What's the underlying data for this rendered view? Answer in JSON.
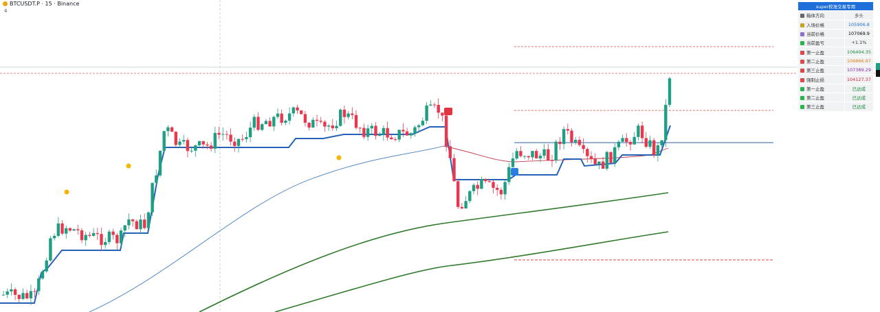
{
  "header": {
    "symbol": "BTCUSDT.P · 15 · Binance",
    "indicator_count": 4
  },
  "panel": {
    "title": "super校准交易专用",
    "rows": [
      [
        "箱体方向",
        "多头"
      ],
      [
        "入场价格",
        "105906.8"
      ],
      [
        "当前价格",
        "107069.9"
      ],
      [
        "当前盈亏",
        "+1.1%"
      ],
      [
        "第一止盈",
        "106404.35"
      ],
      [
        "第二止盈",
        "106866.87"
      ],
      [
        "第三止盈",
        "107389.29"
      ],
      [
        "强制止损",
        "104127.37"
      ],
      [
        "第一止盈",
        "已达成"
      ],
      [
        "第二止盈",
        "已达成"
      ],
      [
        "第三止盈",
        "已达成"
      ]
    ]
  }
}
